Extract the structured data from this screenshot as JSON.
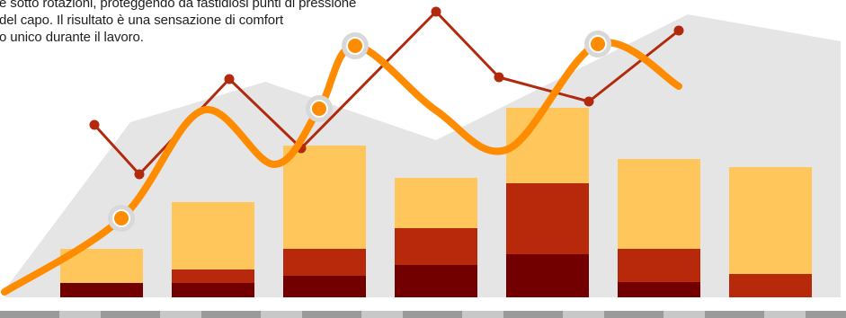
{
  "caption": {
    "lines": [
      "e sotto rotazioni, proteggendo da fastidiosi punti di pressione",
      "del capo. Il risultato è una sensazione di comfort",
      "o unico durante il lavoro."
    ]
  },
  "colors": {
    "area": "#e5e5e5",
    "bar_light": "#ffc65c",
    "bar_mid": "#b8280a",
    "bar_dark": "#720000",
    "line_red": "#b22a0e",
    "curve_orange": "#ff8b00",
    "halo": "#d8d8d8",
    "axis_dark": "#9a9a9a",
    "axis_light": "#c8c8c8"
  },
  "chart_data": {
    "type": "bar",
    "stacked": true,
    "axes_shown": false,
    "ylim": [
      0,
      330
    ],
    "categories_count": 7,
    "series": [
      {
        "values": [
          16,
          16,
          24,
          36,
          48,
          17,
          0
        ]
      },
      {
        "values": [
          0,
          15,
          30,
          41,
          79,
          37,
          26
        ]
      },
      {
        "values": [
          38,
          75,
          115,
          56,
          84,
          100,
          119
        ]
      }
    ],
    "overlays": {
      "area": {
        "type": "area",
        "x": [
          0,
          1.4,
          2.9,
          4.8,
          7.6,
          9.3
        ],
        "y": [
          8,
          195,
          240,
          175,
          315,
          285
        ]
      },
      "red_line": {
        "type": "line",
        "x": [
          1,
          1.5,
          2.5,
          3.3,
          4.8,
          5.5,
          6.5,
          7.5
        ],
        "y": [
          192,
          137,
          243,
          166,
          318,
          245,
          218,
          297
        ]
      },
      "orange_curve": {
        "type": "line",
        "smooth": true,
        "x": [
          0,
          1.3,
          2.2,
          3,
          3.5,
          3.9,
          4.8,
          5.6,
          6.6,
          7.5
        ],
        "y": [
          6,
          88,
          208,
          148,
          210,
          280,
          208,
          165,
          282,
          235
        ],
        "highlighted_points": [
          1,
          4,
          5,
          8
        ]
      }
    }
  }
}
